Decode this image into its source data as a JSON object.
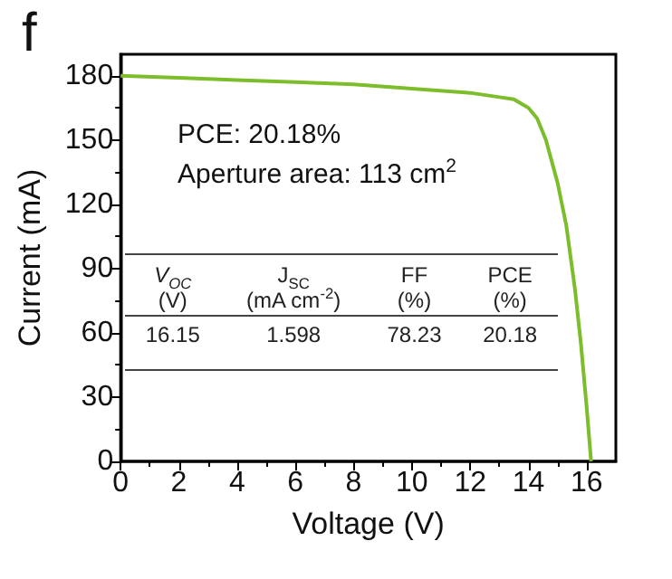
{
  "chart_data": {
    "type": "line",
    "xlabel": "Voltage (V)",
    "ylabel": "Current (mA)",
    "x": [
      0,
      2,
      4,
      6,
      8,
      10,
      12,
      13,
      13.5,
      14,
      14.3,
      14.6,
      15,
      15.3,
      15.6,
      15.8,
      16,
      16.15
    ],
    "series": [
      {
        "color": "#7cbd2c",
        "values": [
          180,
          179,
          178,
          177,
          176,
          174,
          172,
          170,
          169,
          165,
          160,
          150,
          130,
          110,
          80,
          55,
          25,
          0
        ]
      }
    ],
    "xlim": [
      0,
      17
    ],
    "xticks": [
      0,
      2,
      4,
      6,
      8,
      10,
      12,
      14,
      16
    ],
    "ylim": [
      0,
      190
    ],
    "yticks": [
      0,
      30,
      60,
      90,
      120,
      150,
      180
    ],
    "grid": false,
    "marker": "none",
    "line_style": "solid",
    "annotations": [
      "f",
      "PCE: 20.18%",
      "Aperture area: 113 cm$^{2}$",
      "V$_{OC}$",
      "J$_{SC}$",
      "FF",
      "PCE",
      "(V)",
      "(mA cm$^{-2}$)",
      "(%)",
      "(%)",
      "16.15",
      "1.598",
      "78.23",
      "20.18"
    ]
  }
}
